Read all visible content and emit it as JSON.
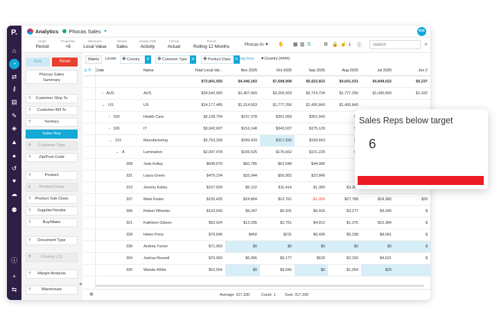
{
  "header": {
    "app": "Analytics",
    "database": "Phocas Sales",
    "avatar": "KH"
  },
  "toolbar": {
    "groups": [
      {
        "label": "Mode",
        "value": "Period"
      },
      {
        "label": "Properties",
        "value": "+8"
      },
      {
        "label": "Measures",
        "value": "Local Value"
      },
      {
        "label": "Stream",
        "value": "Sales"
      },
      {
        "label": "Activity Filter",
        "value": "Activity"
      },
      {
        "label": "Format",
        "value": "Actual"
      },
      {
        "label": "Period",
        "value": "Rolling 12 Months"
      }
    ],
    "phocas_ai": "Phocas AI",
    "search_placeholder": "Search"
  },
  "left_panel": {
    "now_label": "Now",
    "reset_label": "Reset",
    "items": [
      {
        "label": "Phocas Sales\nSummary",
        "state": "tall"
      },
      {
        "label": "Customer Ship To",
        "state": "normal"
      },
      {
        "label": "Customer Bill To",
        "state": "normal"
      },
      {
        "label": "Territory",
        "state": "normal"
      },
      {
        "label": "Sales Rep",
        "state": "selected"
      },
      {
        "label": "Customer Type",
        "state": "faded"
      },
      {
        "label": "Zip/Post Code",
        "state": "normal"
      },
      {
        "label": "Product",
        "state": "normal"
      },
      {
        "label": "Product Class",
        "state": "faded"
      },
      {
        "label": "Product Sub Class",
        "state": "normal"
      },
      {
        "label": "Supplier/Vendor",
        "state": "normal"
      },
      {
        "label": "Buy/Make",
        "state": "normal"
      },
      {
        "label": "Document Type",
        "state": "normal"
      },
      {
        "label": "Country (:1)",
        "state": "faded"
      },
      {
        "label": "Margin Analysis",
        "state": "normal"
      },
      {
        "label": "Warehouse",
        "state": "normal"
      }
    ]
  },
  "grid_controls": {
    "matrix_label": "Matrix",
    "levels_label": "Levels",
    "chips": [
      "Country",
      "Customer Type",
      "Product Class"
    ],
    "drag_here": "Drag here",
    "country_filter": "Country (####)"
  },
  "table": {
    "columns": [
      "Code",
      "Name",
      "Total Local Val...",
      "Nov 2025",
      "Oct 2025",
      "Sep 2025",
      "Aug 2025",
      "Jul 2025",
      "Jun 2"
    ],
    "total_row": [
      "",
      "",
      "$72,841,555",
      "$4,446,183",
      "$7,698,908",
      "$5,922,823",
      "$4,641,031",
      "$4,848,022",
      "$5,237"
    ],
    "rows": [
      {
        "exp": ">",
        "code": "AUS",
        "name": "AUS",
        "vals": [
          "$24,542,965",
          "$1,467,069",
          "$3,206,929",
          "$2,714,724",
          "$1,777,256",
          "$1,430,843",
          "$1,432"
        ],
        "hl": [],
        "neg": []
      },
      {
        "exp": "v",
        "code": "US",
        "name": "US",
        "vals": [
          "$24,177,485",
          "$1,314,553",
          "$1,777,256",
          "$1,430,843",
          "$1,430,843",
          "",
          ""
        ],
        "hl": [],
        "neg": []
      },
      {
        "exp": ">",
        "code": "100",
        "name": "Health Care",
        "vals": [
          "$5,128,754",
          "$237,378",
          "$361,059",
          "$361,943",
          "$3",
          "",
          ""
        ],
        "hl": [],
        "neg": []
      },
      {
        "exp": ">",
        "code": "106",
        "name": "IT",
        "vals": [
          "$3,942,607",
          "$216,148",
          "$343,937",
          "$275,129",
          "$2",
          "",
          ""
        ],
        "hl": [],
        "neg": []
      },
      {
        "exp": "v",
        "code": "101",
        "name": "Manufacturing",
        "vals": [
          "$3,753,328",
          "$299,433",
          "$317,330",
          "$183,663",
          "$2",
          "",
          ""
        ],
        "hl": [
          2
        ],
        "neg": []
      },
      {
        "exp": "v",
        "code": "A",
        "name": "Lumination",
        "vals": [
          "$2,097,478",
          "$165,525",
          "$176,662",
          "$101,229",
          "$1",
          "",
          ""
        ],
        "hl": [],
        "neg": []
      },
      {
        "exp": "",
        "code": "308",
        "name": "Judy Kelley",
        "vals": [
          "$698,070",
          "$60,785",
          "$62,548",
          "$44,906",
          "$",
          "",
          ""
        ],
        "hl": [],
        "neg": []
      },
      {
        "exp": "",
        "code": "331",
        "name": "Laura Green",
        "vals": [
          "$479,194",
          "$32,044",
          "$56,952",
          "$22,849",
          "$",
          "",
          ""
        ],
        "hl": [],
        "neg": []
      },
      {
        "exp": "",
        "code": "319",
        "name": "Jeremy Kelley",
        "vals": [
          "$157,929",
          "$6,122",
          "$11,414",
          "$1,350",
          "$3,300",
          "$6,624",
          "$"
        ],
        "hl": [],
        "neg": []
      },
      {
        "exp": "",
        "code": "337",
        "name": "Mark Foster",
        "vals": [
          "$155,425",
          "$24,804",
          "$12,761",
          "-$1,093",
          "$27,788",
          "$18,382",
          "$20"
        ],
        "hl": [],
        "neg": [
          3
        ]
      },
      {
        "exp": "",
        "code": "306",
        "name": "Robert Wheeler",
        "vals": [
          "$103,043",
          "$9,247",
          "$5,431",
          "$6,416",
          "$3,277",
          "$4,045",
          "$"
        ],
        "hl": [],
        "neg": []
      },
      {
        "exp": "",
        "code": "321",
        "name": "Kathleen Gibson",
        "vals": [
          "$92,924",
          "$12,295",
          "$2,751",
          "$4,812",
          "$1,375",
          "$10,384",
          "$"
        ],
        "hl": [],
        "neg": []
      },
      {
        "exp": "",
        "code": "328",
        "name": "Helen Perry",
        "vals": [
          "$76,696",
          "$450",
          "$231",
          "$6,436",
          "$5,338",
          "$8,991",
          "$"
        ],
        "hl": [],
        "neg": []
      },
      {
        "exp": "",
        "code": "338",
        "name": "Andrea Turner",
        "vals": [
          "$71,953",
          "$0",
          "$0",
          "$0",
          "$0",
          "$0",
          "$"
        ],
        "hl": [
          1,
          2,
          3,
          4,
          5,
          6
        ],
        "neg": []
      },
      {
        "exp": "",
        "code": "304",
        "name": "Joshua Russell",
        "vals": [
          "$70,993",
          "$6,066",
          "$9,177",
          "$629",
          "$2,150",
          "$4,621",
          "$"
        ],
        "hl": [],
        "neg": []
      },
      {
        "exp": "",
        "code": "330",
        "name": "Wanda White",
        "vals": [
          "$52,654",
          "$0",
          "$9,540",
          "$0",
          "$1,054",
          "$20",
          ""
        ],
        "hl": [
          1,
          3,
          5,
          6
        ],
        "neg": []
      },
      {
        "exp": "",
        "code": "",
        "name": "",
        "vals": [
          "",
          "",
          "",
          "",
          "",
          "",
          ""
        ],
        "hl": [],
        "neg": []
      }
    ]
  },
  "status": {
    "average": "Average: 317,330",
    "count": "Count: 1",
    "sum": "Sum: 317,330"
  },
  "card": {
    "title": "Sales Reps below target",
    "value": "6",
    "bar_color": "#ec1c24"
  }
}
